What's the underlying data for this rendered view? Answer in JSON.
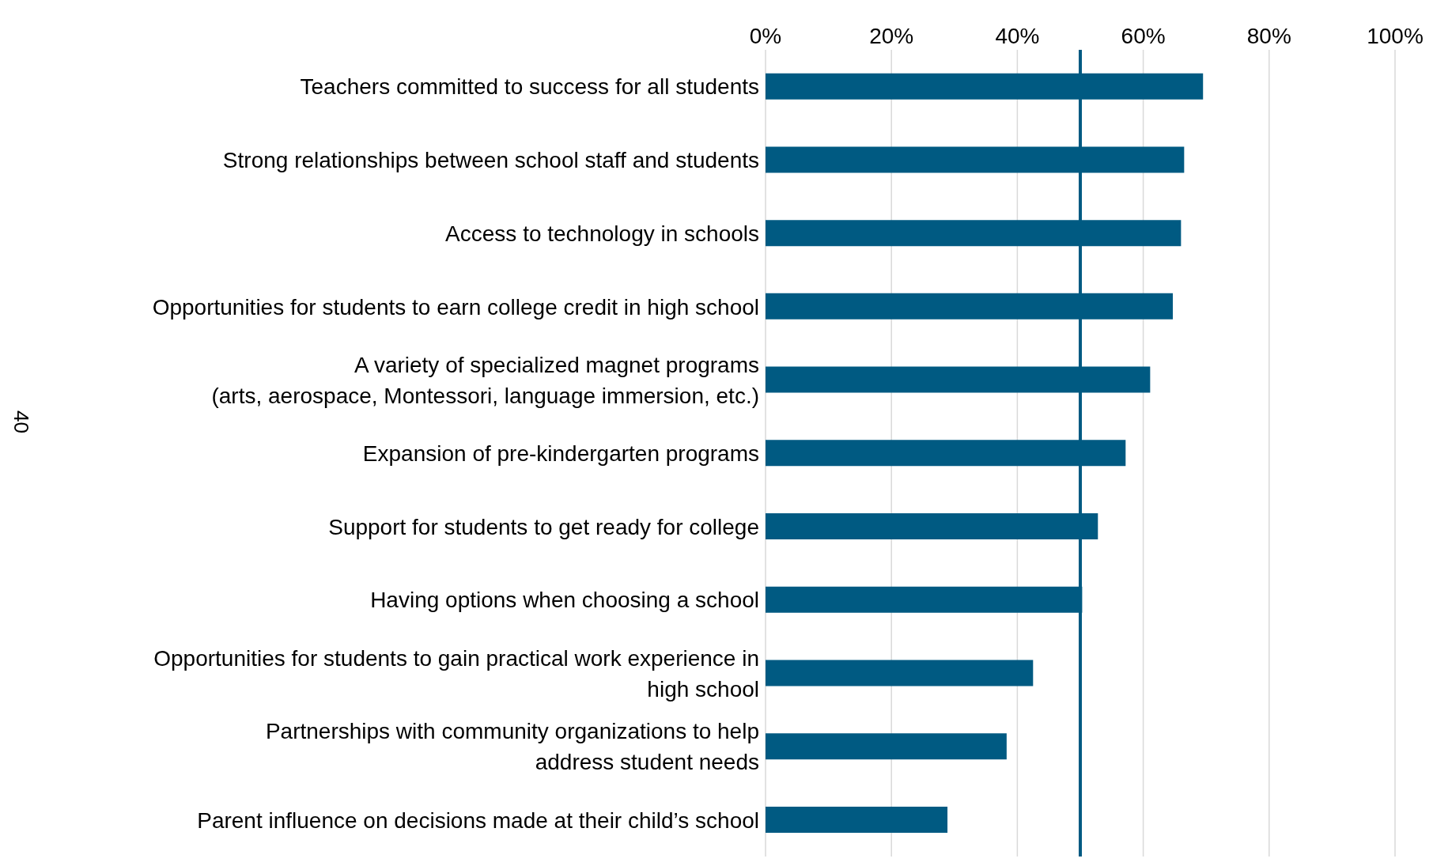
{
  "chart_data": {
    "type": "bar",
    "orientation": "horizontal",
    "categories": [
      "Teachers committed to success for all students",
      "Strong relationships between school staff and students",
      "Access to technology in schools",
      "Opportunities for students to earn college credit in high school",
      "A variety of specialized magnet programs\n(arts, aerospace, Montessori, language immersion, etc.)",
      "Expansion of pre-kindergarten programs",
      "Support for students to get ready for college",
      "Having options when choosing a school",
      "Opportunities for students to gain practical work experience in\nhigh school",
      "Partnerships with community organizations to help\naddress student needs",
      "Parent influence on decisions made at their child’s school"
    ],
    "values": [
      69.5,
      66.5,
      66,
      64.7,
      61.1,
      57.2,
      52.8,
      50.3,
      42.5,
      38.3,
      28.9
    ],
    "color": "#005a82",
    "xlim": [
      0,
      100
    ],
    "xticks": [
      {
        "value": 0,
        "label": "0%"
      },
      {
        "value": 20,
        "label": "20%"
      },
      {
        "value": 40,
        "label": "40%"
      },
      {
        "value": 60,
        "label": "60%"
      },
      {
        "value": 80,
        "label": "80%"
      },
      {
        "value": 100,
        "label": "100%"
      }
    ],
    "grid": "x",
    "ref_lines": [
      {
        "axis": "x",
        "value": 50,
        "color": "#005a82"
      }
    ],
    "annotations": [
      "40"
    ]
  }
}
